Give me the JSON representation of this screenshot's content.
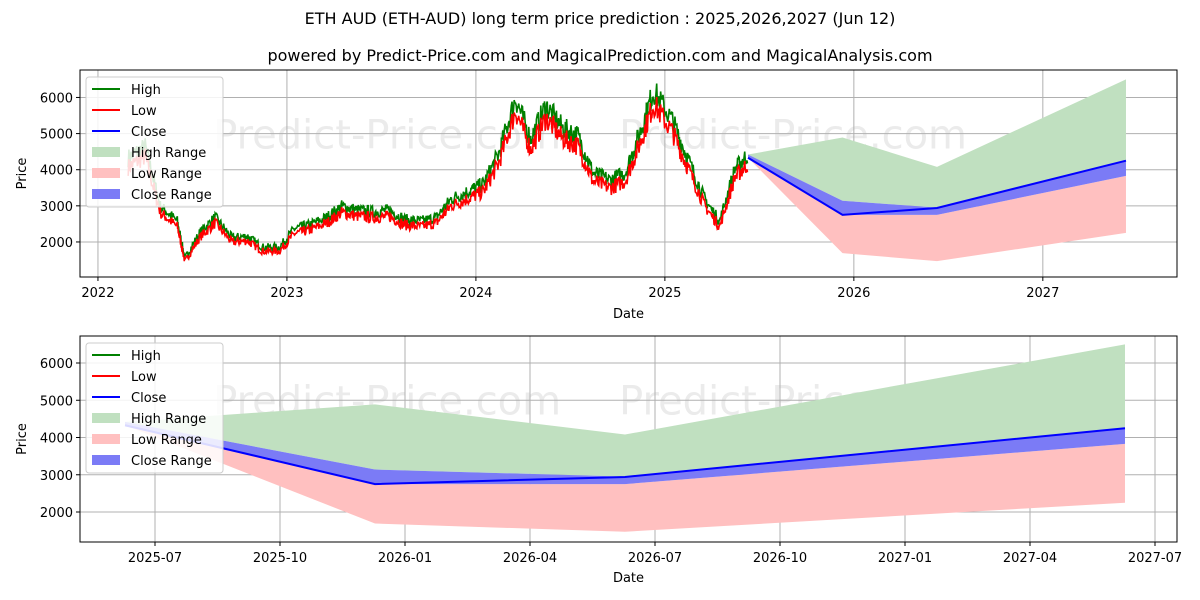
{
  "chart_data": [
    {
      "type": "line",
      "title": "ETH AUD (ETH-AUD) long term price prediction : 2025,2026,2027 (Jun 12)",
      "subtitle": "powered by Predict-Price.com and MagicalPrediction.com and MagicalAnalysis.com",
      "xlabel": "Date",
      "ylabel": "Price",
      "xticks": [
        "2022",
        "2023",
        "2024",
        "2025",
        "2026",
        "2027"
      ],
      "yticks": [
        2000,
        3000,
        4000,
        5000,
        6000
      ],
      "xlim": [
        2021.905,
        2027.71
      ],
      "ylim": [
        1030,
        6760
      ],
      "grid": true,
      "legend_position": "top-left",
      "legend": [
        "High",
        "Low",
        "Close",
        "High Range",
        "Low Range",
        "Close Range"
      ],
      "history_monthly": {
        "x": [
          2022.16,
          2022.25,
          2022.33,
          2022.42,
          2022.46,
          2022.54,
          2022.62,
          2022.71,
          2022.79,
          2022.87,
          2022.96,
          2023.04,
          2023.12,
          2023.21,
          2023.29,
          2023.37,
          2023.46,
          2023.54,
          2023.62,
          2023.71,
          2023.79,
          2023.87,
          2023.96,
          2024.04,
          2024.12,
          2024.21,
          2024.29,
          2024.37,
          2024.46,
          2024.54,
          2024.62,
          2024.71,
          2024.79,
          2024.87,
          2024.94,
          2025.04,
          2025.12,
          2025.21,
          2025.29,
          2025.37,
          2025.44
        ],
        "close": [
          4200,
          4500,
          2900,
          2500,
          1500,
          2200,
          2600,
          2050,
          2100,
          1800,
          1800,
          2300,
          2400,
          2600,
          2900,
          2800,
          2750,
          2800,
          2550,
          2500,
          2600,
          3100,
          3300,
          3500,
          4300,
          5800,
          4700,
          5600,
          5000,
          4800,
          3800,
          3600,
          3800,
          4900,
          6000,
          5200,
          4200,
          3100,
          2500,
          3900,
          4300
        ]
      },
      "forecast": {
        "x": [
          2025.44,
          2025.94,
          2026.44,
          2027.44
        ],
        "close": [
          4330,
          2750,
          2940,
          4250
        ],
        "high_range": [
          4420,
          4890,
          4080,
          6500
        ],
        "low_range": [
          4330,
          1690,
          1470,
          2250
        ],
        "close_range_top": [
          4420,
          3140,
          2950,
          4250
        ],
        "close_range_bottom": [
          4300,
          2750,
          2750,
          3830
        ]
      },
      "watermark": "Predict-Price.com"
    },
    {
      "type": "line",
      "xlabel": "Date",
      "ylabel": "Price",
      "xticks": [
        "2025-07",
        "2025-10",
        "2026-01",
        "2026-04",
        "2026-07",
        "2026-10",
        "2027-01",
        "2027-04",
        "2027-07"
      ],
      "yticks": [
        2000,
        3000,
        4000,
        5000,
        6000
      ],
      "ylim": [
        1195,
        6725
      ],
      "grid": true,
      "legend_position": "top-left",
      "legend": [
        "High",
        "Low",
        "Close",
        "High Range",
        "Low Range",
        "Close Range"
      ]
    }
  ],
  "colors": {
    "high": "#008000",
    "low": "#ff0000",
    "close": "#0000ff",
    "high_range": "#c0e0c0",
    "low_range": "#ffc0c0",
    "close_range": "#7b7bf6"
  }
}
